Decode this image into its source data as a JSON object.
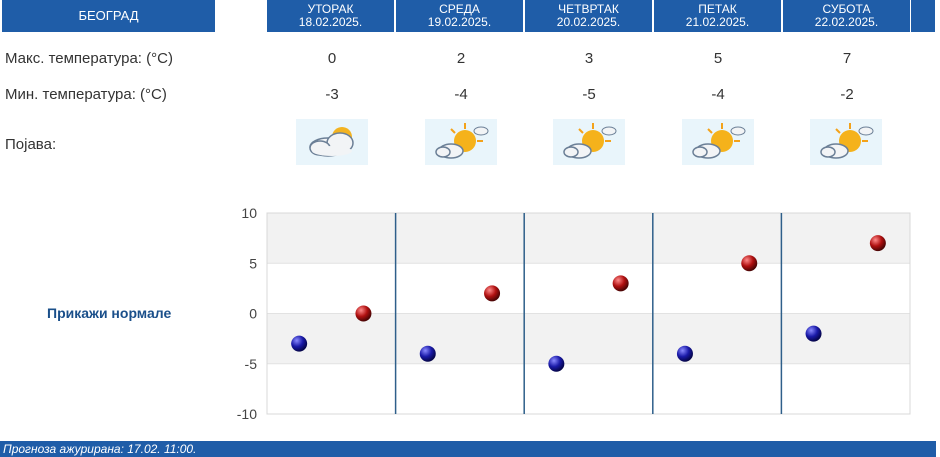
{
  "header": {
    "city": "БЕОГРАД",
    "days": [
      {
        "name": "УТОРАК",
        "date": "18.02.2025."
      },
      {
        "name": "СРЕДА",
        "date": "19.02.2025."
      },
      {
        "name": "ЧЕТВРТАК",
        "date": "20.02.2025."
      },
      {
        "name": "ПЕТАК",
        "date": "21.02.2025."
      },
      {
        "name": "СУБОТА",
        "date": "22.02.2025."
      }
    ]
  },
  "rows": {
    "max_label": "Макс. температура: (°C)",
    "min_label": "Мин. температура: (°C)",
    "phen_label": "Појава:",
    "max_values": [
      "0",
      "2",
      "3",
      "5",
      "7"
    ],
    "min_values": [
      "-3",
      "-4",
      "-5",
      "-4",
      "-2"
    ],
    "icons": [
      "cloudy-sun-icon",
      "partly-sunny-icon",
      "partly-sunny-icon",
      "partly-sunny-icon",
      "partly-sunny-icon"
    ]
  },
  "normals_link": "Прикажи нормале",
  "footer": "Прогноза ажурирана:  17.02. 11:00.",
  "colors": {
    "header_bg": "#1f5da8",
    "min_dot": "#1a1aa8",
    "max_dot": "#b01010",
    "divider": "#2e5f8a"
  },
  "chart_data": {
    "type": "scatter",
    "categories": [
      "18.02.2025.",
      "19.02.2025.",
      "20.02.2025.",
      "21.02.2025.",
      "22.02.2025."
    ],
    "series": [
      {
        "values": [
          -3,
          -4,
          -5,
          -4,
          -2
        ]
      },
      {
        "values": [
          0,
          2,
          3,
          5,
          7
        ]
      }
    ],
    "ylim": [
      -10,
      10
    ],
    "yticks": [
      "10",
      "5",
      "0",
      "-5",
      "-10"
    ],
    "grid": true
  }
}
